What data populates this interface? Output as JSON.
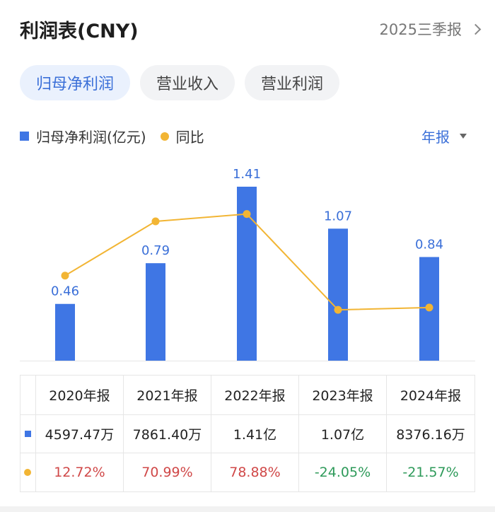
{
  "header": {
    "title": "利润表(CNY)",
    "report_label": "2025三季报"
  },
  "tabs": [
    {
      "label": "归母净利润",
      "active": true
    },
    {
      "label": "营业收入",
      "active": false
    },
    {
      "label": "营业利润",
      "active": false
    }
  ],
  "legend": {
    "bar_label": "归母净利润(亿元)",
    "line_label": "同比"
  },
  "period_selector": "年报",
  "chart_data": {
    "type": "bar",
    "categories": [
      "2020年报",
      "2021年报",
      "2022年报",
      "2023年报",
      "2024年报"
    ],
    "series": [
      {
        "name": "归母净利润(亿元)",
        "type": "bar",
        "values": [
          0.46,
          0.79,
          1.41,
          1.07,
          0.84
        ],
        "labels": [
          "0.46",
          "0.79",
          "1.41",
          "1.07",
          "0.84"
        ],
        "color": "#3f76e4"
      },
      {
        "name": "同比",
        "type": "line",
        "values": [
          12.72,
          70.99,
          78.88,
          -24.05,
          -21.57
        ],
        "color": "#f2b534"
      }
    ],
    "legend_position": "top-left",
    "grid": false
  },
  "table": {
    "headers": [
      "2020年报",
      "2021年报",
      "2022年报",
      "2023年报",
      "2024年报"
    ],
    "profit_row": [
      "4597.47万",
      "7861.40万",
      "1.41亿",
      "1.07亿",
      "8376.16万"
    ],
    "yoy_row": [
      "12.72%",
      "70.99%",
      "78.88%",
      "-24.05%",
      "-21.57%"
    ]
  },
  "colors": {
    "accent": "#3a6fd8",
    "bar": "#3f76e4",
    "line": "#f2b534",
    "positive": "#d04848",
    "negative": "#2e9a5a"
  }
}
